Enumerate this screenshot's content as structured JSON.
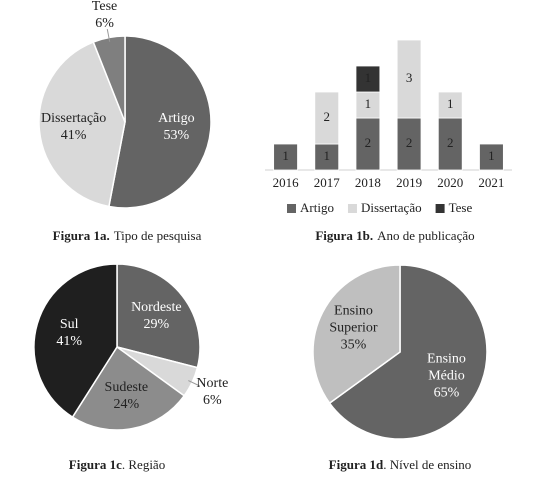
{
  "chart_data": [
    {
      "type": "pie",
      "caption_label": "Figura 1a.",
      "caption": "Tipo de pesquisa",
      "categories": [
        "Artigo",
        "Dissertação",
        "Tese"
      ],
      "values": [
        53,
        41,
        6
      ],
      "value_labels": [
        "53%",
        "41%",
        "6%"
      ],
      "colors": [
        "#646464",
        "#d9d9d9",
        "#7f7f7f"
      ]
    },
    {
      "type": "bar",
      "stacked": true,
      "caption_label": "Figura 1b.",
      "caption": "Ano de publicação",
      "categories": [
        "2016",
        "2017",
        "2018",
        "2019",
        "2020",
        "2021"
      ],
      "series": [
        {
          "name": "Artigo",
          "color": "#646464",
          "values": [
            1,
            1,
            2,
            2,
            2,
            1
          ]
        },
        {
          "name": "Dissertação",
          "color": "#d9d9d9",
          "values": [
            null,
            2,
            1,
            3,
            1,
            null
          ]
        },
        {
          "name": "Tese",
          "color": "#333333",
          "values": [
            null,
            null,
            1,
            null,
            null,
            null
          ]
        }
      ],
      "legend": "bottom"
    },
    {
      "type": "pie",
      "caption_label": "Figura 1c",
      "caption": ". Região",
      "categories": [
        "Nordeste",
        "Norte",
        "Sudeste",
        "Sul"
      ],
      "values": [
        29,
        6,
        24,
        41
      ],
      "value_labels": [
        "29%",
        "6%",
        "24%",
        "41%"
      ],
      "colors": [
        "#646464",
        "#d9d9d9",
        "#8c8c8c",
        "#1f1f1f"
      ]
    },
    {
      "type": "pie",
      "caption_label": "Figura 1d",
      "caption": ". Nível de ensino",
      "categories": [
        "Ensino Médio",
        "Ensino Superior"
      ],
      "values": [
        65,
        35
      ],
      "value_labels": [
        "65%",
        "35%"
      ],
      "colors": [
        "#646464",
        "#bfbfbf"
      ]
    }
  ]
}
